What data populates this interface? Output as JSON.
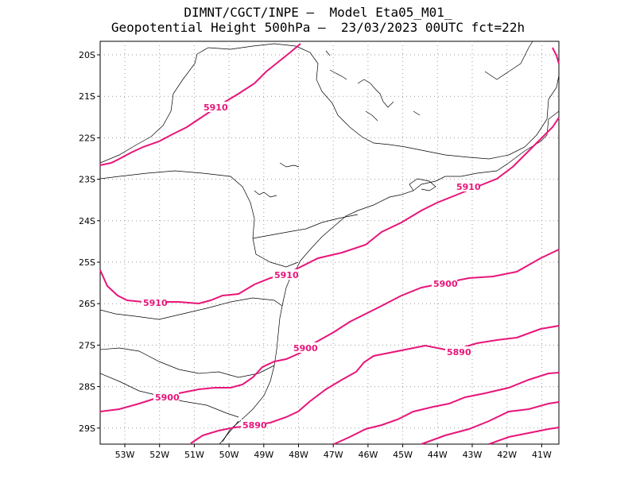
{
  "title_line1": "DIMNT/CGCT/INPE –  Model Eta05_M01_",
  "title_line2": "Geopotential Height 500hPa –  23/03/2023 00UTC fct=22h",
  "colors": {
    "contour": "#e8157a",
    "grid": "#9a9a9a",
    "coast": "#000000"
  },
  "lat_ticks": [
    "20S",
    "21S",
    "22S",
    "23S",
    "24S",
    "25S",
    "26S",
    "27S",
    "28S",
    "29S"
  ],
  "lon_ticks": [
    "53W",
    "52W",
    "51W",
    "50W",
    "49W",
    "48W",
    "47W",
    "46W",
    "45W",
    "44W",
    "43W",
    "42W",
    "41W"
  ],
  "contour_labels": [
    {
      "text": "5910"
    },
    {
      "text": "5910"
    },
    {
      "text": "5910"
    },
    {
      "text": "5910"
    },
    {
      "text": "5900"
    },
    {
      "text": "5900"
    },
    {
      "text": "5900"
    },
    {
      "text": "5890"
    },
    {
      "text": "5890"
    }
  ],
  "map_data": {
    "type": "contour-map",
    "variable": "Geopotential Height 500hPa",
    "lat_range": [
      -29.4,
      -19.6
    ],
    "lon_range": [
      -53.6,
      -40.6
    ],
    "contour_levels": [
      5910,
      5900,
      5890
    ]
  }
}
